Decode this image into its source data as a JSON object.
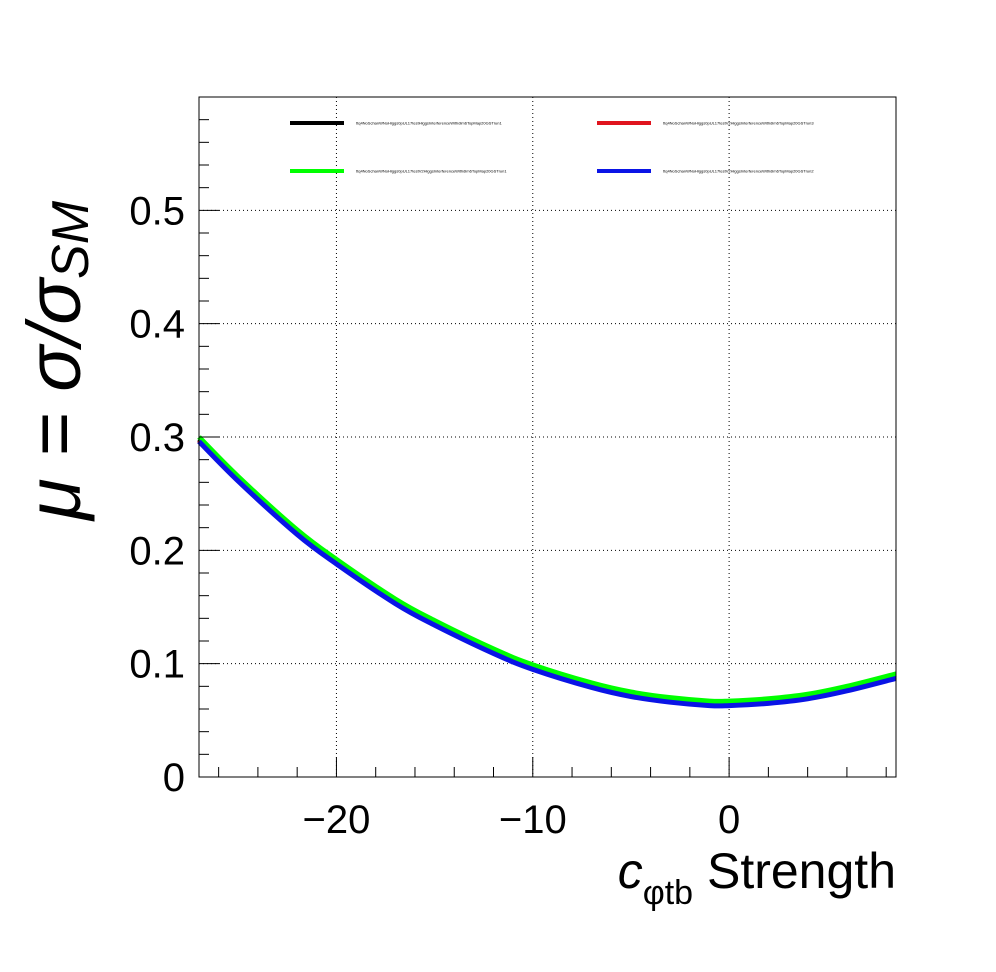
{
  "chart_data": {
    "type": "line",
    "title": "",
    "xlabel": {
      "main": "c",
      "sub": "φtb",
      "rest": " Strength"
    },
    "ylabel": {
      "mu": "μ",
      "eq": " = σ/σ",
      "sub": "SM"
    },
    "xlim": [
      -27,
      8.5
    ],
    "ylim": [
      0,
      0.6
    ],
    "xticks": [
      -20,
      -10,
      0
    ],
    "xtick_labels": [
      "−20",
      "−10",
      "0"
    ],
    "yticks": [
      0,
      0.1,
      0.2,
      0.3,
      0.4,
      0.5
    ],
    "ytick_labels": [
      "0",
      "0.1",
      "0.2",
      "0.3",
      "0.4",
      "0.5"
    ],
    "grid": true,
    "legend_placement": "top",
    "series": [
      {
        "name": "ttq4NoSchanWNoHiggs0pUL17testHiggsInterferenceWithdim6TopMap20GSTrun1",
        "color": "#000000",
        "x": [
          -27,
          -25,
          -22,
          -20,
          -17,
          -15,
          -12,
          -10,
          -7,
          -5,
          -3,
          -1,
          0,
          2,
          4,
          6,
          8.5
        ],
        "y": [
          0.298,
          0.263,
          0.216,
          0.19,
          0.155,
          0.136,
          0.111,
          0.097,
          0.081,
          0.073,
          0.068,
          0.065,
          0.065,
          0.067,
          0.071,
          0.078,
          0.089
        ]
      },
      {
        "name": "ttq4NoSchanWNoHiggs0pUL17testV2HiggsInterferenceWithdim6TopMap20GSTrun3",
        "color": "#e0141e",
        "x": [
          -27,
          -25,
          -22,
          -20,
          -17,
          -15,
          -12,
          -10,
          -7,
          -5,
          -3,
          -1,
          0,
          2,
          4,
          6,
          8.5
        ],
        "y": [
          0.297,
          0.262,
          0.215,
          0.189,
          0.154,
          0.135,
          0.11,
          0.096,
          0.08,
          0.072,
          0.067,
          0.064,
          0.064,
          0.066,
          0.07,
          0.077,
          0.088
        ]
      },
      {
        "name": "ttq4NoSchanWNoHiggs0pUL17testV2HiggsInterferenceWithdim6TopMap20GSTrun1",
        "color": "#00ff00",
        "x": [
          -27,
          -25,
          -22,
          -20,
          -17,
          -15,
          -12,
          -10,
          -7,
          -5,
          -3,
          -1,
          0,
          2,
          4,
          6,
          8.5
        ],
        "y": [
          0.3,
          0.265,
          0.218,
          0.192,
          0.157,
          0.138,
          0.113,
          0.099,
          0.083,
          0.075,
          0.07,
          0.067,
          0.067,
          0.069,
          0.073,
          0.08,
          0.091
        ]
      },
      {
        "name": "ttq4NoSchanWNoHiggs0pUL17testV2HiggsInterferenceWithdim6TopMap20GSTrun2",
        "color": "#0a14e6",
        "x": [
          -27,
          -25,
          -22,
          -20,
          -17,
          -15,
          -12,
          -10,
          -7,
          -5,
          -3,
          -1,
          0,
          2,
          4,
          6,
          8.5
        ],
        "y": [
          0.296,
          0.261,
          0.214,
          0.188,
          0.153,
          0.134,
          0.109,
          0.095,
          0.079,
          0.071,
          0.066,
          0.063,
          0.063,
          0.065,
          0.069,
          0.076,
          0.087
        ]
      }
    ]
  }
}
